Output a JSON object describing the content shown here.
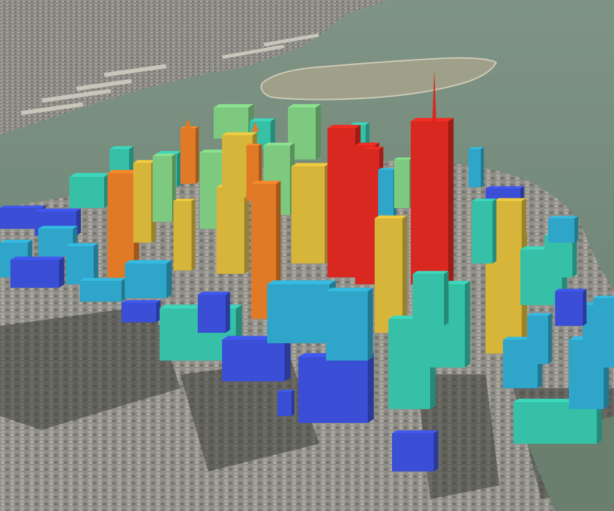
{
  "map": {
    "view": "3d-building-height-visualization",
    "basemap": "satellite-imagery",
    "palette": {
      "water": "#6f8776",
      "water_far": "#7f9485",
      "land_urban": "#8d8d86",
      "land_dark": "#5e5e58",
      "island": "#a29f8a",
      "height_1": "#3a4fd6",
      "height_2": "#2fa6c9",
      "height_3": "#36c0a8",
      "height_4": "#7dc97f",
      "height_5": "#d6b53a",
      "height_6": "#e07a26",
      "height_7": "#d8281f"
    }
  }
}
